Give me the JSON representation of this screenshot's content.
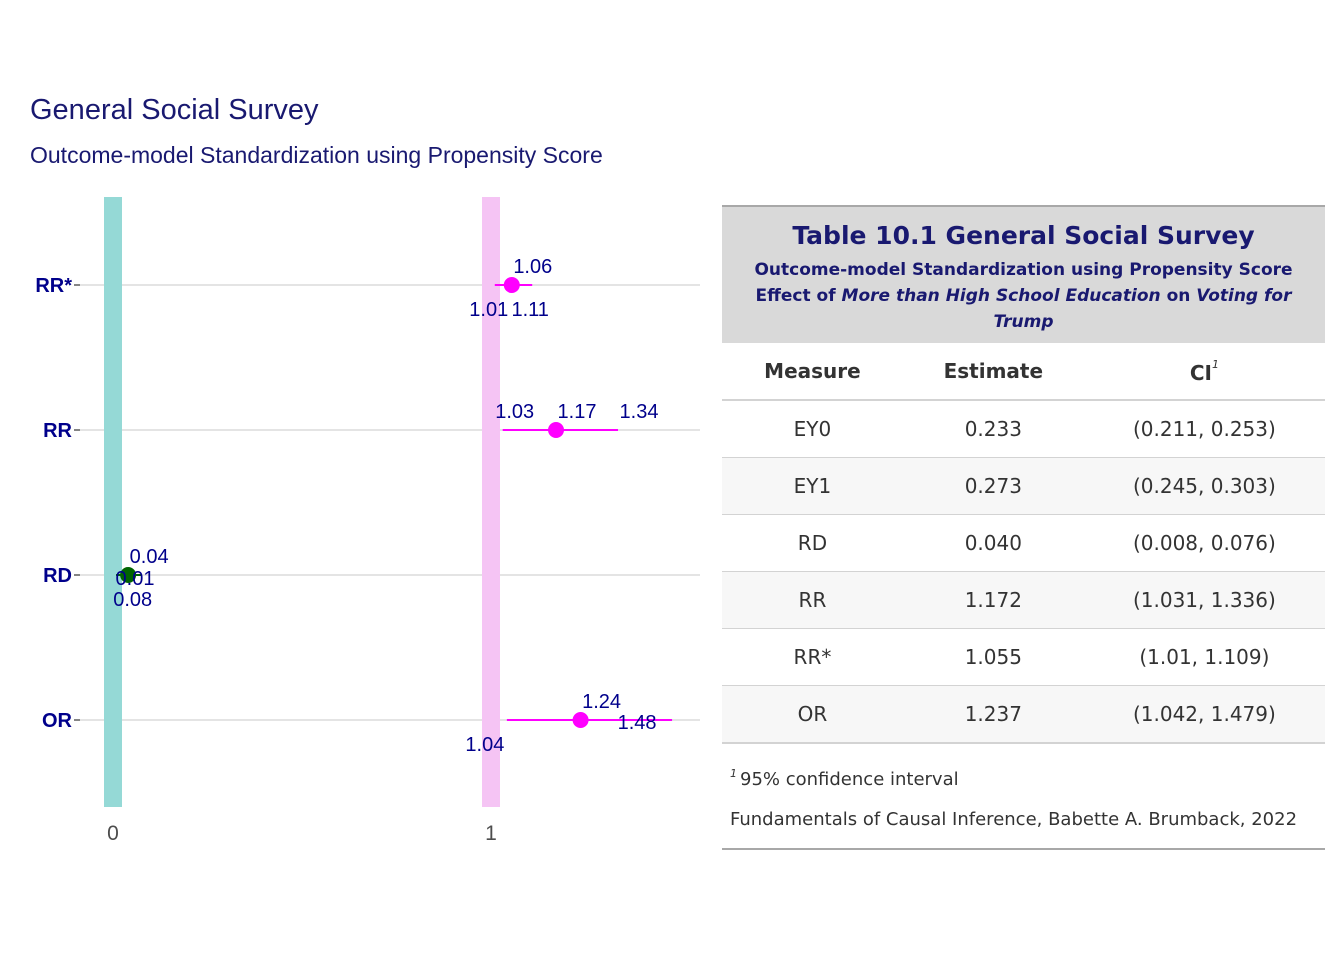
{
  "plot": {
    "title": "General Social Survey",
    "subtitle": "Outcome-model Standardization using Propensity Score"
  },
  "chart_data": {
    "type": "scatter",
    "subtype": "forest-plot",
    "categories": [
      "RR*",
      "RR",
      "RD",
      "OR"
    ],
    "x_ticks": [
      "0",
      "1"
    ],
    "reference_lines": [
      0,
      1
    ],
    "reference_colors": [
      "#95d9d6",
      "#f5c4f4"
    ],
    "point_colors": {
      "RD": "#006400",
      "default": "#ff00ff"
    },
    "rows": [
      {
        "measure": "RR*",
        "estimate": 1.055,
        "lower": 1.01,
        "upper": 1.109,
        "labels": {
          "estimate": "1.06",
          "lower": "1.01",
          "upper": "1.11"
        }
      },
      {
        "measure": "RR",
        "estimate": 1.172,
        "lower": 1.031,
        "upper": 1.336,
        "labels": {
          "estimate": "1.17",
          "lower": "1.03",
          "upper": "1.34"
        }
      },
      {
        "measure": "RD",
        "estimate": 0.04,
        "lower": 0.008,
        "upper": 0.076,
        "labels": {
          "estimate": "0.04",
          "lower": "0.01",
          "upper": "0.08"
        }
      },
      {
        "measure": "OR",
        "estimate": 1.237,
        "lower": 1.042,
        "upper": 1.479,
        "labels": {
          "estimate": "1.24",
          "lower": "1.04",
          "upper": "1.48"
        }
      }
    ],
    "grid": true
  },
  "table": {
    "title": "Table 10.1 General Social Survey",
    "subtitle_line1": "Outcome-model Standardization using Propensity Score",
    "subtitle_effect": "Effect of",
    "subtitle_exposure": "More than High School Education",
    "subtitle_on": "on",
    "subtitle_outcome": "Voting for Trump",
    "columns": {
      "measure": "Measure",
      "estimate": "Estimate",
      "ci": "CI",
      "ci_mark": "1"
    },
    "rows": [
      {
        "measure": "EY0",
        "estimate": "0.233",
        "ci": "(0.211, 0.253)"
      },
      {
        "measure": "EY1",
        "estimate": "0.273",
        "ci": "(0.245, 0.303)"
      },
      {
        "measure": "RD",
        "estimate": "0.040",
        "ci": "(0.008, 0.076)"
      },
      {
        "measure": "RR",
        "estimate": "1.172",
        "ci": "(1.031, 1.336)"
      },
      {
        "measure": "RR*",
        "estimate": "1.055",
        "ci": "(1.01, 1.109)"
      },
      {
        "measure": "OR",
        "estimate": "1.237",
        "ci": "(1.042, 1.479)"
      }
    ],
    "footnote_mark": "1",
    "footnote": "95% confidence interval",
    "source": "Fundamentals of Causal Inference, Babette A. Brumback, 2022"
  }
}
